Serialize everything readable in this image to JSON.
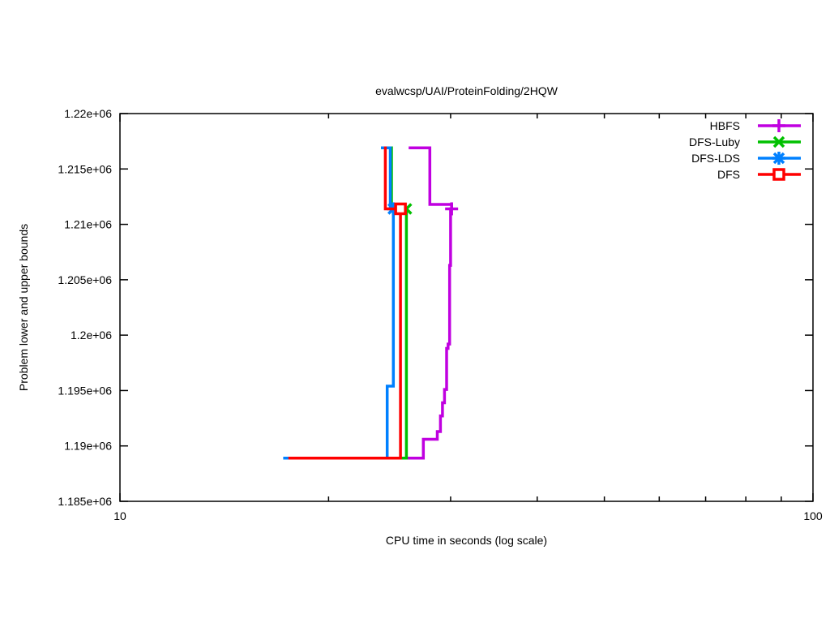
{
  "figure": {
    "background": "#ffffff",
    "border_color": "#000000",
    "text_color": "#000000"
  },
  "chart_data": {
    "type": "line",
    "title": "evalwcsp/UAI/ProteinFolding/2HQW",
    "xlabel": "CPU time in seconds (log scale)",
    "ylabel": "Problem lower and upper bounds",
    "xscale": "log",
    "xlim": [
      10,
      100
    ],
    "ylim": [
      1185000,
      1220000
    ],
    "grid": false,
    "legend_position": "top-right-inside",
    "xticks": [
      {
        "value": 10,
        "label": "10"
      },
      {
        "value": 100,
        "label": "100"
      }
    ],
    "minor_xticks": [
      20,
      30,
      40,
      50,
      60,
      70,
      80,
      90
    ],
    "yticks": [
      {
        "value": 1185000,
        "label": "1.185e+06"
      },
      {
        "value": 1190000,
        "label": "1.19e+06"
      },
      {
        "value": 1195000,
        "label": "1.195e+06"
      },
      {
        "value": 1200000,
        "label": "1.2e+06"
      },
      {
        "value": 1205000,
        "label": "1.205e+06"
      },
      {
        "value": 1210000,
        "label": "1.21e+06"
      },
      {
        "value": 1215000,
        "label": "1.215e+06"
      },
      {
        "value": 1220000,
        "label": "1.22e+06"
      }
    ],
    "series": [
      {
        "name": "HBFS",
        "color": "#c000e0",
        "marker": "plus",
        "upper_bound": [
          [
            26.1,
            1216900
          ],
          [
            28.0,
            1216900
          ],
          [
            28.0,
            1211800
          ],
          [
            30.1,
            1211800
          ],
          [
            30.1,
            1211400
          ]
        ],
        "lower_bound": [
          [
            17.5,
            1188900
          ],
          [
            27.4,
            1188900
          ],
          [
            27.4,
            1190600
          ],
          [
            28.7,
            1190600
          ],
          [
            28.7,
            1191300
          ],
          [
            29.0,
            1191300
          ],
          [
            29.0,
            1192700
          ],
          [
            29.2,
            1192700
          ],
          [
            29.2,
            1193900
          ],
          [
            29.4,
            1193900
          ],
          [
            29.4,
            1195100
          ],
          [
            29.6,
            1195100
          ],
          [
            29.6,
            1198800
          ],
          [
            29.75,
            1198800
          ],
          [
            29.75,
            1199200
          ],
          [
            29.9,
            1199200
          ],
          [
            29.9,
            1206300
          ],
          [
            30.0,
            1206300
          ],
          [
            30.0,
            1211400
          ],
          [
            30.1,
            1211400
          ]
        ],
        "optimum_point": [
          30.1,
          1211400
        ]
      },
      {
        "name": "DFS-Luby",
        "color": "#00c000",
        "marker": "x",
        "upper_bound": [
          [
            24.5,
            1216900
          ],
          [
            24.65,
            1216900
          ],
          [
            24.65,
            1211400
          ],
          [
            25.9,
            1211400
          ]
        ],
        "lower_bound": [
          [
            17.5,
            1188900
          ],
          [
            25.9,
            1188900
          ],
          [
            25.9,
            1211400
          ]
        ],
        "optimum_point": [
          25.9,
          1211400
        ]
      },
      {
        "name": "DFS-LDS",
        "color": "#0080ff",
        "marker": "asterisk",
        "upper_bound": [
          [
            23.8,
            1216900
          ],
          [
            24.55,
            1216900
          ],
          [
            24.55,
            1211400
          ],
          [
            24.8,
            1211400
          ]
        ],
        "lower_bound": [
          [
            17.2,
            1188900
          ],
          [
            24.3,
            1188900
          ],
          [
            24.3,
            1195400
          ],
          [
            24.8,
            1195400
          ],
          [
            24.8,
            1211400
          ]
        ],
        "optimum_point": [
          24.8,
          1211400
        ]
      },
      {
        "name": "DFS",
        "color": "#ff0000",
        "marker": "square-open",
        "upper_bound": [
          [
            24.05,
            1216900
          ],
          [
            24.15,
            1216900
          ],
          [
            24.15,
            1211400
          ],
          [
            25.4,
            1211400
          ]
        ],
        "lower_bound": [
          [
            17.5,
            1188900
          ],
          [
            25.4,
            1188900
          ],
          [
            25.4,
            1211400
          ]
        ],
        "optimum_point": [
          25.4,
          1211400
        ]
      }
    ]
  }
}
